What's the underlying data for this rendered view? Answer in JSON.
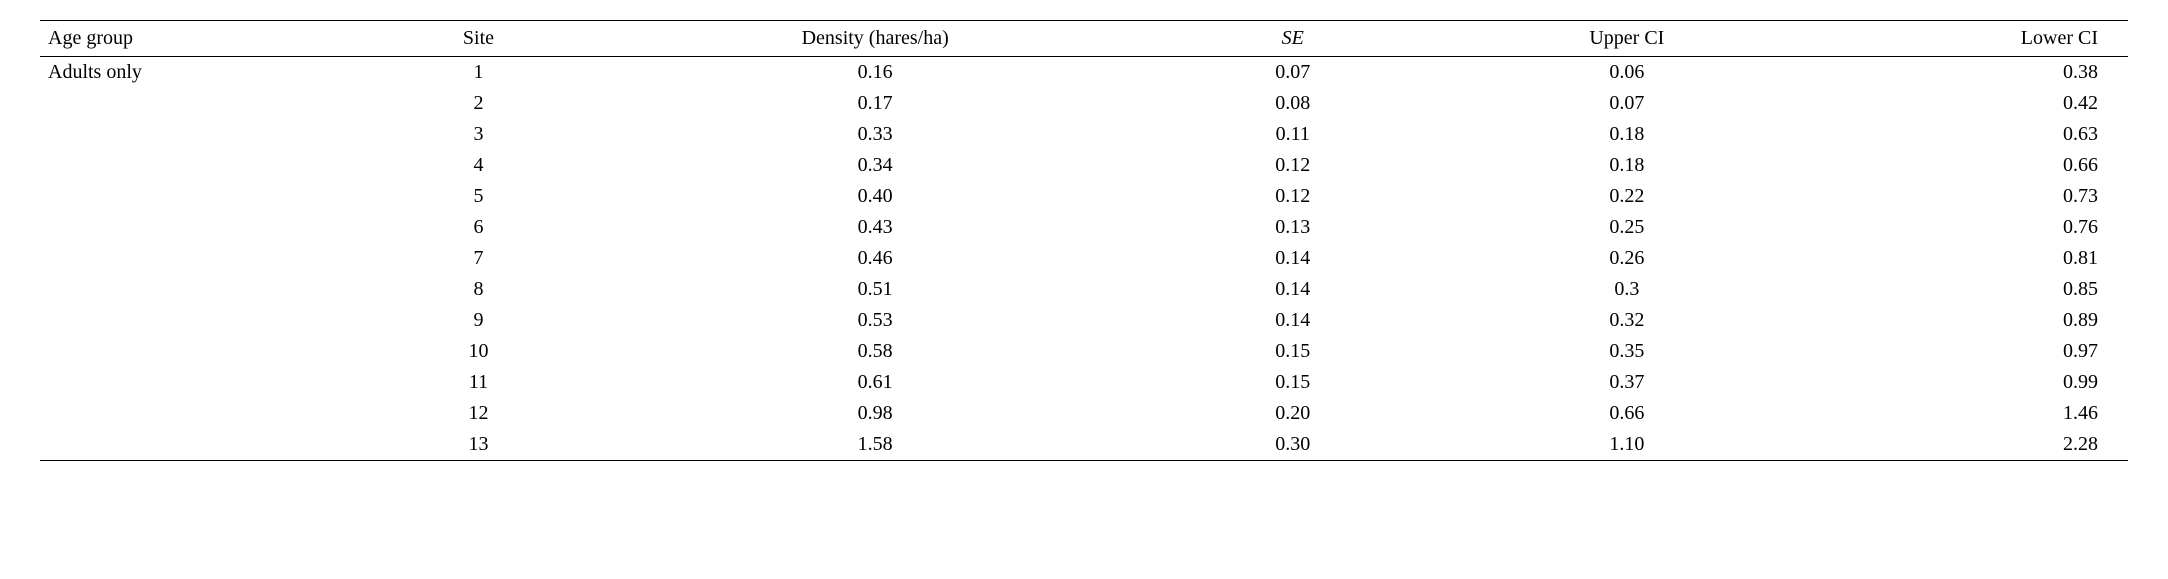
{
  "table": {
    "type": "table",
    "background_color": "#ffffff",
    "text_color": "#000000",
    "border_color": "#000000",
    "font_family": "Times New Roman",
    "header_fontsize": 20,
    "body_fontsize": 20,
    "columns": [
      {
        "key": "age_group",
        "label": "Age group",
        "align": "left"
      },
      {
        "key": "site",
        "label": "Site",
        "align": "center"
      },
      {
        "key": "density",
        "label": "Density (hares/ha)",
        "align": "center"
      },
      {
        "key": "se",
        "label": "SE",
        "align": "center",
        "header_italic": true
      },
      {
        "key": "upper_ci",
        "label": "Upper CI",
        "align": "center"
      },
      {
        "key": "lower_ci",
        "label": "Lower CI",
        "align": "right"
      }
    ],
    "rows": [
      {
        "age_group": "Adults only",
        "site": "1",
        "density": "0.16",
        "se": "0.07",
        "upper_ci": "0.06",
        "lower_ci": "0.38"
      },
      {
        "age_group": "",
        "site": "2",
        "density": "0.17",
        "se": "0.08",
        "upper_ci": "0.07",
        "lower_ci": "0.42"
      },
      {
        "age_group": "",
        "site": "3",
        "density": "0.33",
        "se": "0.11",
        "upper_ci": "0.18",
        "lower_ci": "0.63"
      },
      {
        "age_group": "",
        "site": "4",
        "density": "0.34",
        "se": "0.12",
        "upper_ci": "0.18",
        "lower_ci": "0.66"
      },
      {
        "age_group": "",
        "site": "5",
        "density": "0.40",
        "se": "0.12",
        "upper_ci": "0.22",
        "lower_ci": "0.73"
      },
      {
        "age_group": "",
        "site": "6",
        "density": "0.43",
        "se": "0.13",
        "upper_ci": "0.25",
        "lower_ci": "0.76"
      },
      {
        "age_group": "",
        "site": "7",
        "density": "0.46",
        "se": "0.14",
        "upper_ci": "0.26",
        "lower_ci": "0.81"
      },
      {
        "age_group": "",
        "site": "8",
        "density": "0.51",
        "se": "0.14",
        "upper_ci": "0.3",
        "lower_ci": "0.85"
      },
      {
        "age_group": "",
        "site": "9",
        "density": "0.53",
        "se": "0.14",
        "upper_ci": "0.32",
        "lower_ci": "0.89"
      },
      {
        "age_group": "",
        "site": "10",
        "density": "0.58",
        "se": "0.15",
        "upper_ci": "0.35",
        "lower_ci": "0.97"
      },
      {
        "age_group": "",
        "site": "11",
        "density": "0.61",
        "se": "0.15",
        "upper_ci": "0.37",
        "lower_ci": "0.99"
      },
      {
        "age_group": "",
        "site": "12",
        "density": "0.98",
        "se": "0.20",
        "upper_ci": "0.66",
        "lower_ci": "1.46"
      },
      {
        "age_group": "",
        "site": "13",
        "density": "1.58",
        "se": "0.30",
        "upper_ci": "1.10",
        "lower_ci": "2.28"
      }
    ]
  }
}
